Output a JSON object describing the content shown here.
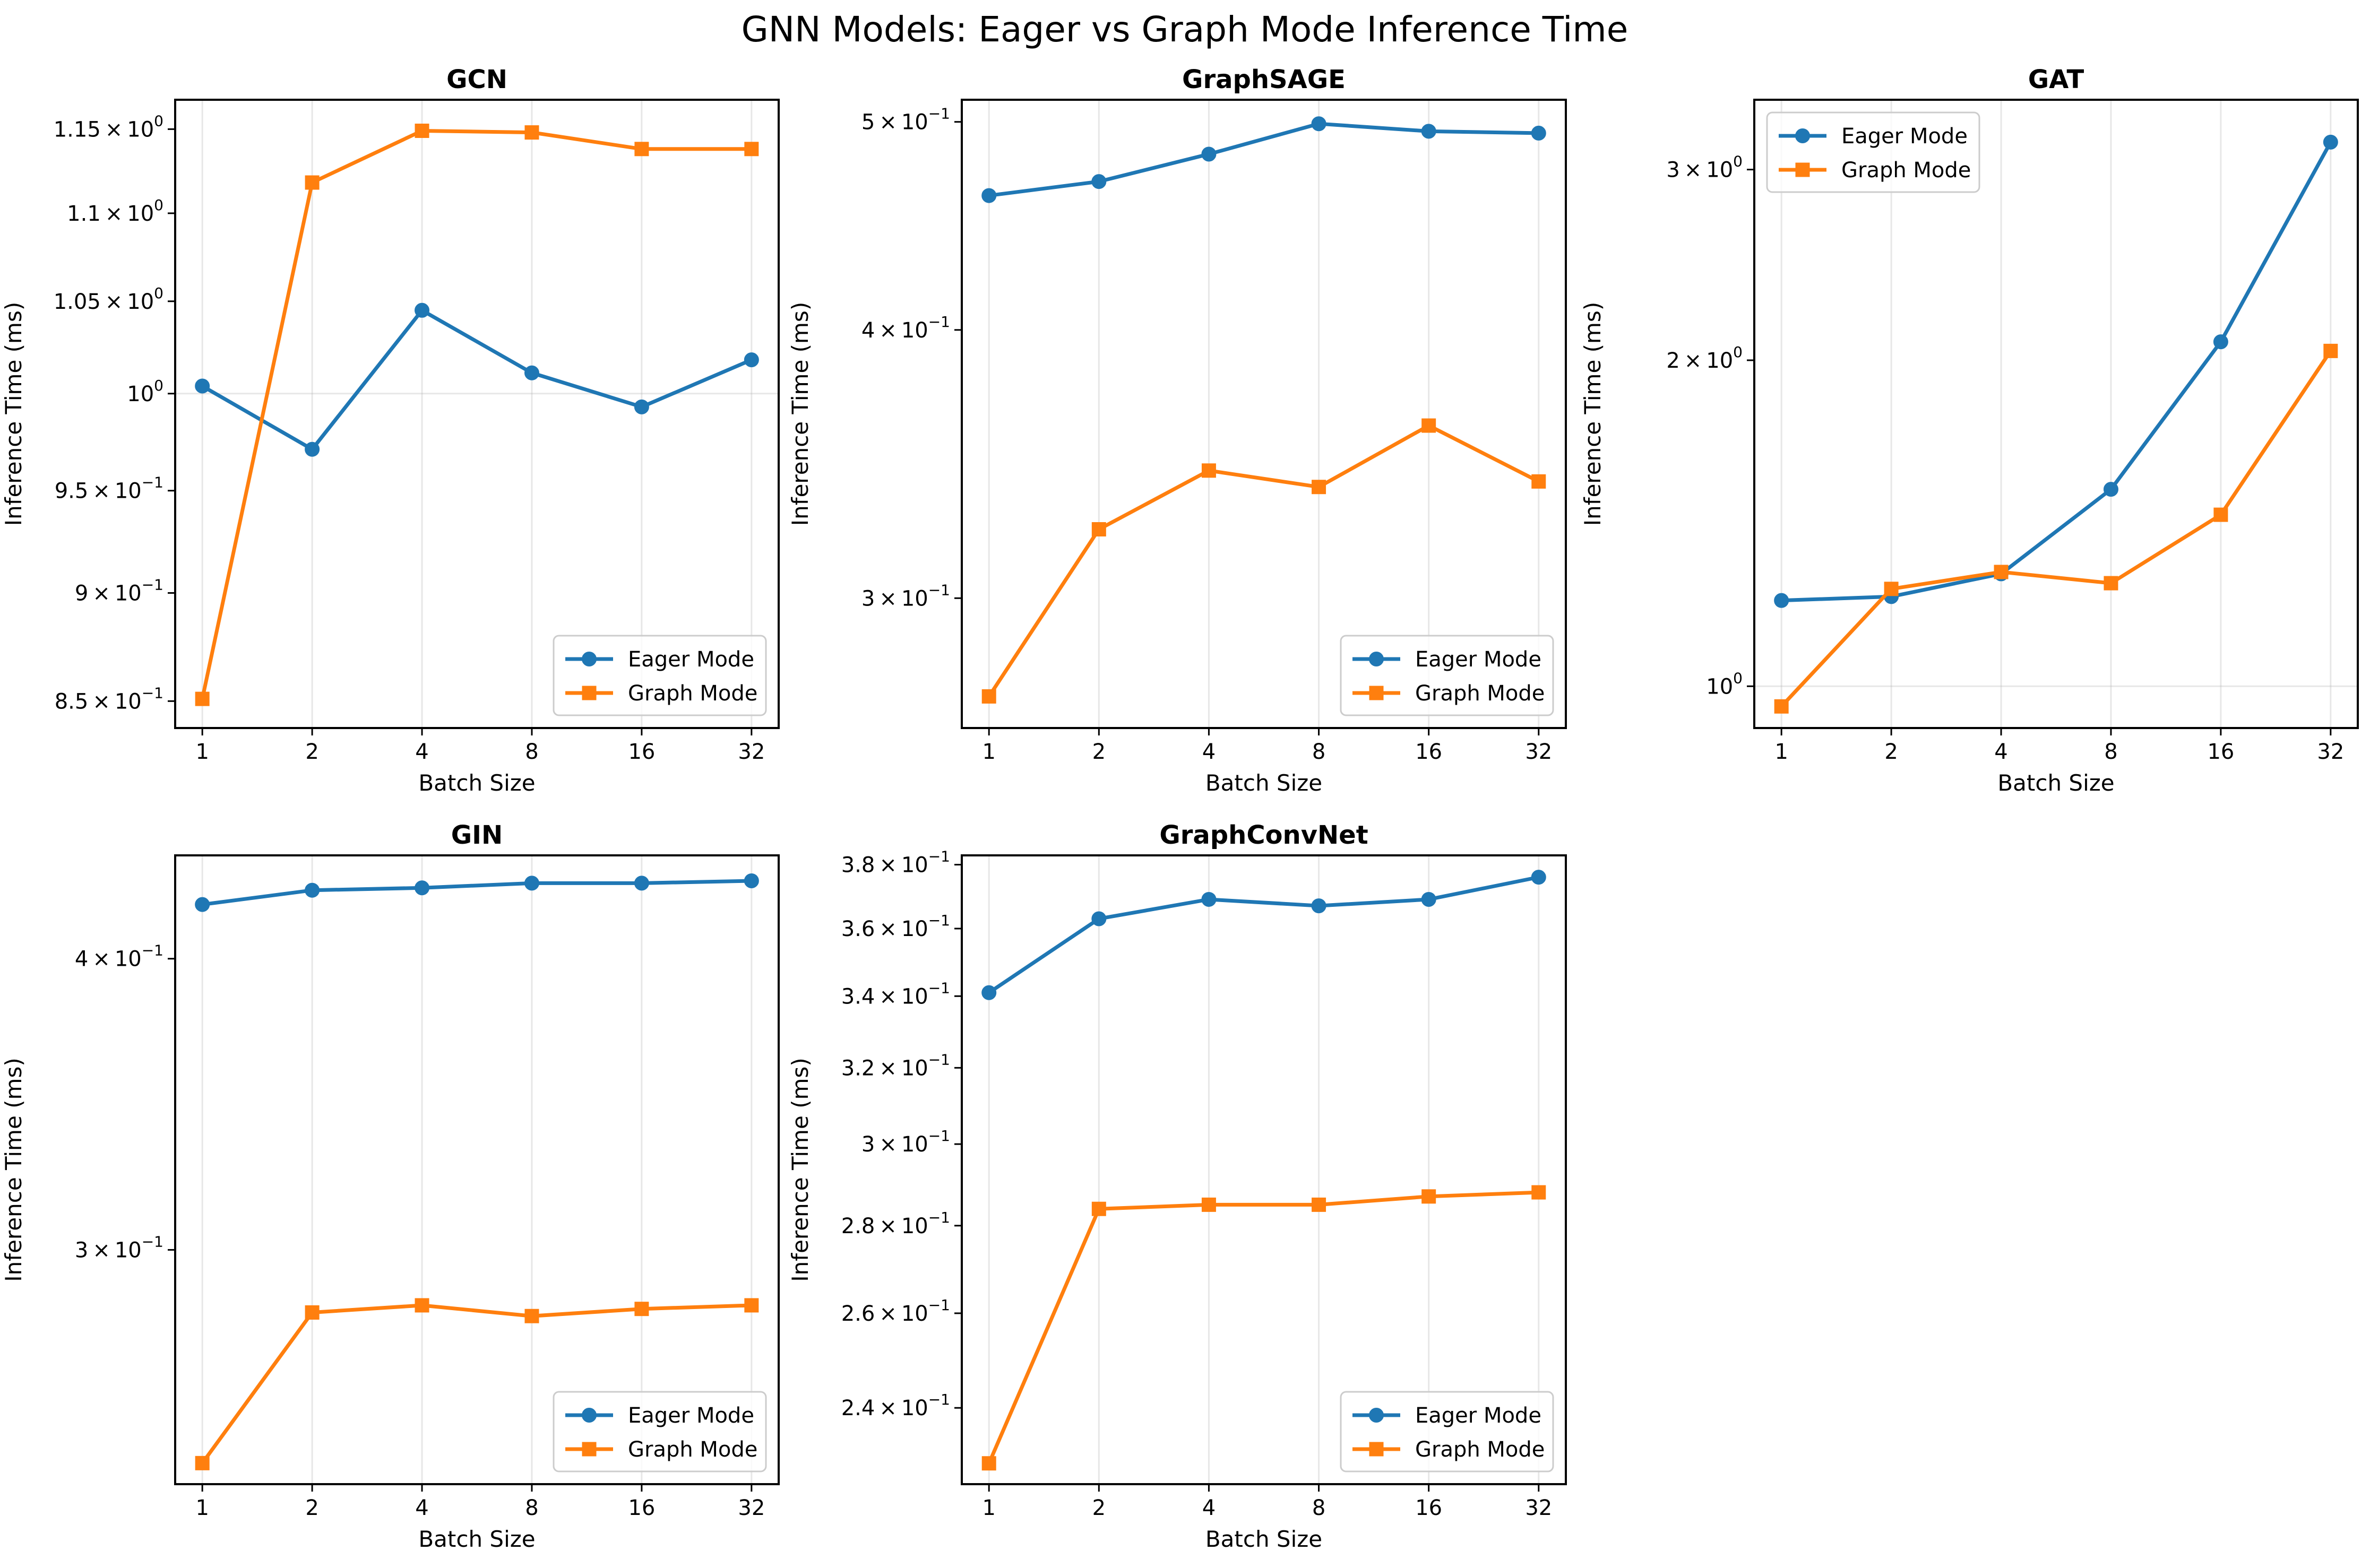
{
  "suptitle": "GNN Models: Eager vs Graph Mode Inference Time",
  "colors": {
    "eager": "#1f77b4",
    "graph": "#ff7f0e"
  },
  "chart_data": [
    {
      "type": "line",
      "title": "GCN",
      "xlabel": "Batch Size",
      "ylabel": "Inference Time (ms)",
      "yscale": "log",
      "x": [
        1,
        2,
        4,
        8,
        16,
        32
      ],
      "x_tick_labels": [
        "1",
        "2",
        "4",
        "8",
        "16",
        "32"
      ],
      "ylim": [
        0.838,
        1.168
      ],
      "y_ticks": [
        {
          "value": 0.85,
          "mantissa": "8.5",
          "exp": "−1"
        },
        {
          "value": 0.9,
          "mantissa": "9",
          "exp": "−1"
        },
        {
          "value": 0.95,
          "mantissa": "9.5",
          "exp": "−1"
        },
        {
          "value": 1.0,
          "mantissa": "",
          "exp": "0"
        },
        {
          "value": 1.05,
          "mantissa": "1.05",
          "exp": "0"
        },
        {
          "value": 1.1,
          "mantissa": "1.1",
          "exp": "0"
        },
        {
          "value": 1.15,
          "mantissa": "1.15",
          "exp": "0"
        }
      ],
      "major_gridline": 1.0,
      "legend": "lower-right",
      "series": [
        {
          "name": "Eager Mode",
          "marker": "circle",
          "values": [
            1.004,
            0.971,
            1.045,
            1.011,
            0.993,
            1.018
          ]
        },
        {
          "name": "Graph Mode",
          "marker": "square",
          "values": [
            0.851,
            1.118,
            1.149,
            1.148,
            1.138,
            1.138
          ]
        }
      ]
    },
    {
      "type": "line",
      "title": "GraphSAGE",
      "xlabel": "Batch Size",
      "ylabel": "Inference Time (ms)",
      "yscale": "log",
      "x": [
        1,
        2,
        4,
        8,
        16,
        32
      ],
      "x_tick_labels": [
        "1",
        "2",
        "4",
        "8",
        "16",
        "32"
      ],
      "ylim": [
        0.261,
        0.512
      ],
      "y_ticks": [
        {
          "value": 0.3,
          "mantissa": "3",
          "exp": "−1"
        },
        {
          "value": 0.4,
          "mantissa": "4",
          "exp": "−1"
        },
        {
          "value": 0.5,
          "mantissa": "5",
          "exp": "−1"
        }
      ],
      "major_gridline": null,
      "legend": "lower-right",
      "series": [
        {
          "name": "Eager Mode",
          "marker": "circle",
          "values": [
            0.462,
            0.469,
            0.483,
            0.499,
            0.495,
            0.494
          ]
        },
        {
          "name": "Graph Mode",
          "marker": "square",
          "values": [
            0.27,
            0.323,
            0.344,
            0.338,
            0.361,
            0.34
          ]
        }
      ]
    },
    {
      "type": "line",
      "title": "GAT",
      "xlabel": "Batch Size",
      "ylabel": "Inference Time (ms)",
      "yscale": "log",
      "x": [
        1,
        2,
        4,
        8,
        16,
        32
      ],
      "x_tick_labels": [
        "1",
        "2",
        "4",
        "8",
        "16",
        "32"
      ],
      "ylim": [
        0.915,
        3.48
      ],
      "y_ticks": [
        {
          "value": 1.0,
          "mantissa": "",
          "exp": "0"
        },
        {
          "value": 2.0,
          "mantissa": "2",
          "exp": "0"
        },
        {
          "value": 3.0,
          "mantissa": "3",
          "exp": "0"
        }
      ],
      "major_gridline": 1.0,
      "legend": "upper-left",
      "series": [
        {
          "name": "Eager Mode",
          "marker": "circle",
          "values": [
            1.2,
            1.21,
            1.27,
            1.52,
            2.08,
            3.18
          ]
        },
        {
          "name": "Graph Mode",
          "marker": "square",
          "values": [
            0.958,
            1.23,
            1.275,
            1.245,
            1.44,
            2.04
          ]
        }
      ]
    },
    {
      "type": "line",
      "title": "GIN",
      "xlabel": "Batch Size",
      "ylabel": "Inference Time (ms)",
      "yscale": "log",
      "x": [
        1,
        2,
        4,
        8,
        16,
        32
      ],
      "x_tick_labels": [
        "1",
        "2",
        "4",
        "8",
        "16",
        "32"
      ],
      "ylim": [
        0.238,
        0.443
      ],
      "y_ticks": [
        {
          "value": 0.3,
          "mantissa": "3",
          "exp": "−1"
        },
        {
          "value": 0.4,
          "mantissa": "4",
          "exp": "−1"
        }
      ],
      "major_gridline": null,
      "legend": "lower-right",
      "series": [
        {
          "name": "Eager Mode",
          "marker": "circle",
          "values": [
            0.422,
            0.428,
            0.429,
            0.431,
            0.431,
            0.432
          ]
        },
        {
          "name": "Graph Mode",
          "marker": "square",
          "values": [
            0.243,
            0.282,
            0.284,
            0.281,
            0.283,
            0.284
          ]
        }
      ]
    },
    {
      "type": "line",
      "title": "GraphConvNet",
      "xlabel": "Batch Size",
      "ylabel": "Inference Time (ms)",
      "yscale": "log",
      "x": [
        1,
        2,
        4,
        8,
        16,
        32
      ],
      "x_tick_labels": [
        "1",
        "2",
        "4",
        "8",
        "16",
        "32"
      ],
      "ylim": [
        0.225,
        0.383
      ],
      "y_ticks": [
        {
          "value": 0.24,
          "mantissa": "2.4",
          "exp": "−1"
        },
        {
          "value": 0.26,
          "mantissa": "2.6",
          "exp": "−1"
        },
        {
          "value": 0.28,
          "mantissa": "2.8",
          "exp": "−1"
        },
        {
          "value": 0.3,
          "mantissa": "3",
          "exp": "−1"
        },
        {
          "value": 0.32,
          "mantissa": "3.2",
          "exp": "−1"
        },
        {
          "value": 0.34,
          "mantissa": "3.4",
          "exp": "−1"
        },
        {
          "value": 0.36,
          "mantissa": "3.6",
          "exp": "−1"
        },
        {
          "value": 0.38,
          "mantissa": "3.8",
          "exp": "−1"
        }
      ],
      "major_gridline": null,
      "legend": "lower-right",
      "series": [
        {
          "name": "Eager Mode",
          "marker": "circle",
          "values": [
            0.341,
            0.363,
            0.369,
            0.367,
            0.369,
            0.376
          ]
        },
        {
          "name": "Graph Mode",
          "marker": "square",
          "values": [
            0.229,
            0.284,
            0.285,
            0.285,
            0.287,
            0.288
          ]
        }
      ]
    }
  ]
}
